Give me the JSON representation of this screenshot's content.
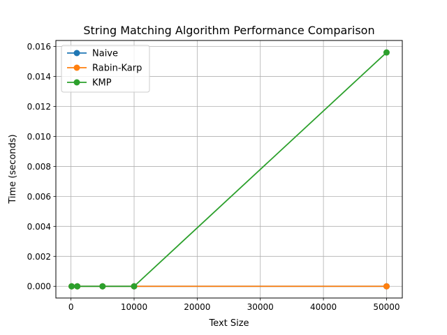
{
  "chart_data": {
    "type": "line",
    "title": "String Matching Algorithm Performance Comparison",
    "xlabel": "Text Size",
    "ylabel": "Time (seconds)",
    "x": [
      100,
      1000,
      5000,
      10000,
      50000
    ],
    "xlim": [
      -2395,
      52495
    ],
    "ylim": [
      -0.00078,
      0.0164
    ],
    "xticks": [
      0,
      10000,
      20000,
      30000,
      40000,
      50000
    ],
    "yticks": [
      0.0,
      0.002,
      0.004,
      0.006,
      0.008,
      0.01,
      0.012,
      0.014,
      0.016
    ],
    "ytick_decimals": 3,
    "grid": true,
    "legend_position": "top-left",
    "series": [
      {
        "name": "Naive",
        "color": "#1f77b4",
        "values": [
          0.0,
          0.0,
          0.0,
          0.0,
          0.0
        ]
      },
      {
        "name": "Rabin-Karp",
        "color": "#ff7f0e",
        "values": [
          0.0,
          0.0,
          0.0,
          0.0,
          0.0
        ]
      },
      {
        "name": "KMP",
        "color": "#2ca02c",
        "values": [
          0.0,
          0.0,
          0.0,
          0.0,
          0.0156
        ]
      }
    ]
  }
}
